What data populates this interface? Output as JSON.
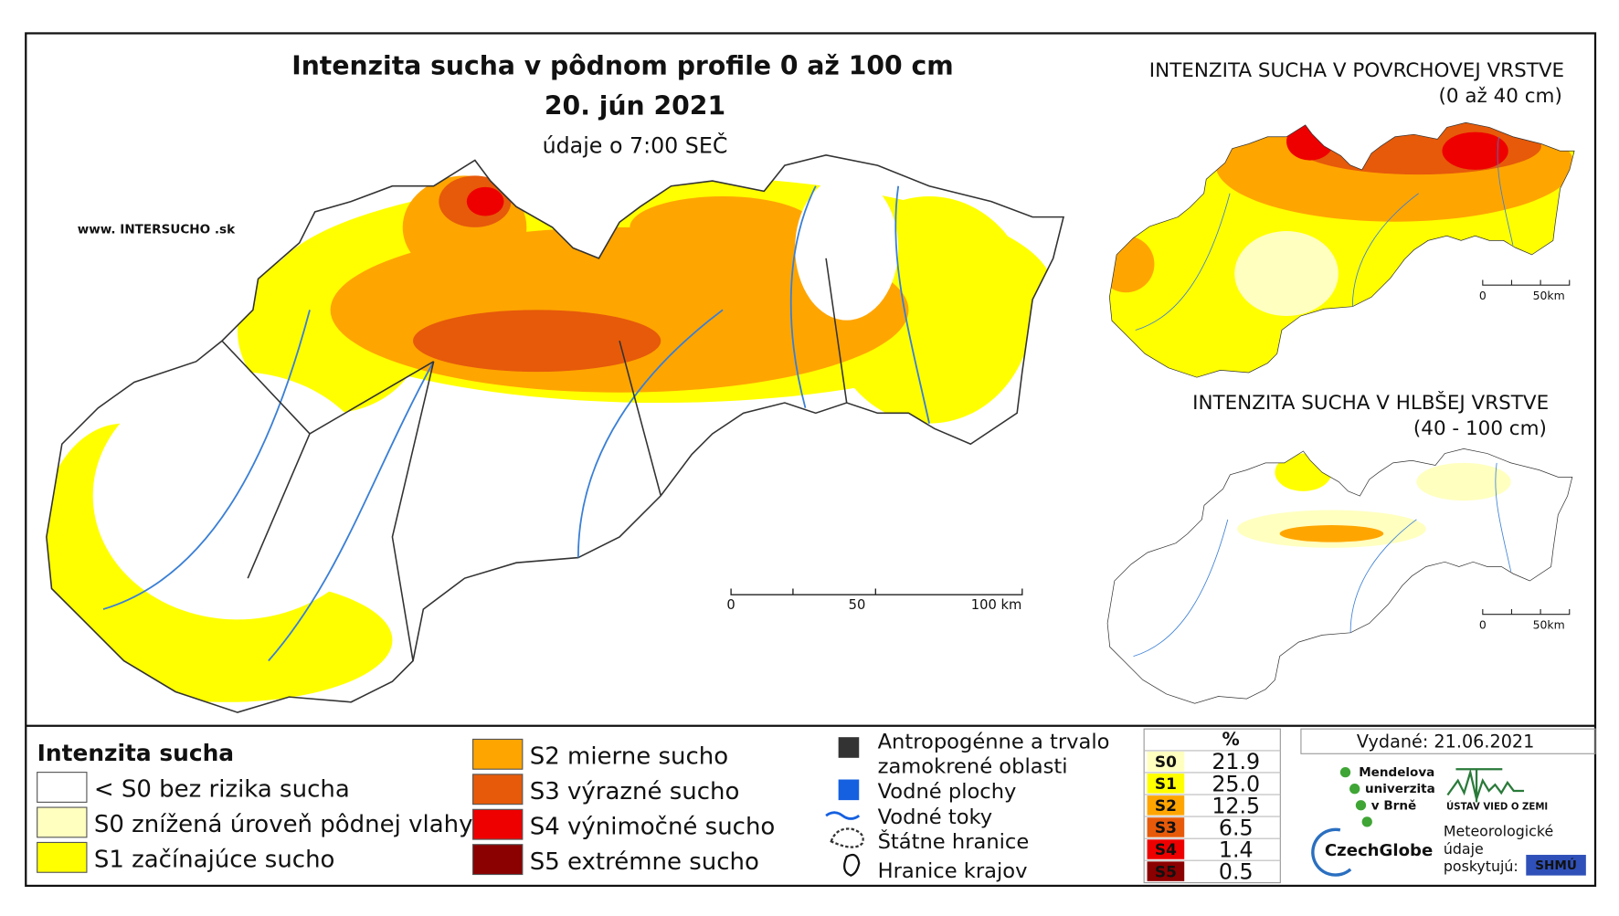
{
  "main_map": {
    "title": "Intenzita sucha v pôdnom profile 0 až 100 cm",
    "date": "20. jún 2021",
    "subtitle": "údaje o 7:00 SEČ",
    "website": "www. INTERSUCHO .sk",
    "scale_labels": [
      "0",
      "50",
      "100 km"
    ]
  },
  "inset_surface": {
    "title": "INTENZITA SUCHA V POVRCHOVEJ VRSTVE",
    "subtitle": "(0 až 40 cm)",
    "scale_labels": [
      "0",
      "50km"
    ]
  },
  "inset_deep": {
    "title": "INTENZITA SUCHA V HLBŠEJ VRSTVE",
    "subtitle": "(40 - 100 cm)",
    "scale_labels": [
      "0",
      "50km"
    ]
  },
  "legend": {
    "title": "Intenzita sucha",
    "items": [
      {
        "label": "< S0 bez rizika sucha",
        "color": "#ffffff"
      },
      {
        "label": "S0 znížená úroveň pôdnej vlahy",
        "color": "#ffffc0"
      },
      {
        "label": "S1 začínajúce sucho",
        "color": "#ffff00"
      },
      {
        "label": "S2 mierne sucho",
        "color": "#ffa500"
      },
      {
        "label": "S3 výrazné sucho",
        "color": "#e65a0a"
      },
      {
        "label": "S4 výnimočné sucho",
        "color": "#ee0000"
      },
      {
        "label": "S5 extrémne sucho",
        "color": "#8b0000"
      }
    ]
  },
  "symbols": {
    "items": [
      {
        "lines": [
          "Antropogénne a trvalo",
          "zamokrené oblasti"
        ]
      },
      {
        "lines": [
          "Vodné plochy"
        ]
      },
      {
        "lines": [
          "Vodné toky"
        ]
      },
      {
        "lines": [
          "Štátne hranice"
        ]
      },
      {
        "lines": [
          "Hranice krajov"
        ]
      }
    ]
  },
  "table": {
    "header": "%",
    "rows": [
      [
        "S0",
        "21.9"
      ],
      [
        "S1",
        "25.0"
      ],
      [
        "S2",
        "12.5"
      ],
      [
        "S3",
        "6.5"
      ],
      [
        "S4",
        "1.4"
      ],
      [
        "S5",
        "0.5"
      ]
    ]
  },
  "footer": {
    "issued": "Vydané: 21.06.2021",
    "mendel": [
      "Mendelova",
      "univerzita",
      "v Brně"
    ],
    "czechglobe": "CzechGlobe",
    "uvz": "ÚSTAV VIED O ZEMI",
    "meteo": [
      "Meteorologické",
      "údaje",
      "poskytujú:"
    ],
    "shmu": "SHMÚ"
  }
}
